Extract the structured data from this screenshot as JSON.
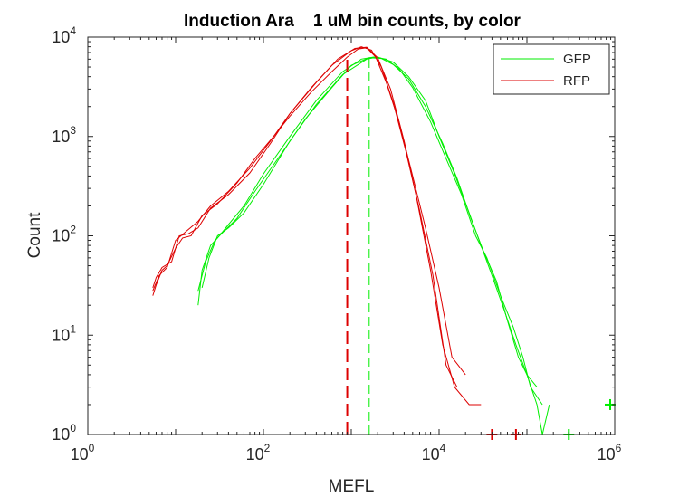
{
  "chart_data": {
    "type": "line",
    "title": "Induction Ara    1 uM bin counts, by color",
    "xlabel": "MEFL",
    "ylabel": "Count",
    "xscale": "log",
    "yscale": "log",
    "xlim": [
      1,
      1000000
    ],
    "ylim": [
      1,
      10000
    ],
    "x_ticks": [
      {
        "base": "10",
        "exp": "0"
      },
      {
        "base": "10",
        "exp": "2"
      },
      {
        "base": "10",
        "exp": "4"
      },
      {
        "base": "10",
        "exp": "6"
      }
    ],
    "y_ticks": [
      {
        "base": "10",
        "exp": "0"
      },
      {
        "base": "10",
        "exp": "1"
      },
      {
        "base": "10",
        "exp": "2"
      },
      {
        "base": "10",
        "exp": "3"
      },
      {
        "base": "10",
        "exp": "4"
      }
    ],
    "grid": false,
    "legend_position": "top-right",
    "colors": {
      "GFP": "#00ee00",
      "RFP": "#dd0000"
    },
    "series": [
      {
        "name": "GFP",
        "color": "#00ee00",
        "replicates": [
          {
            "x": [
              18,
              20,
              25,
              30,
              40,
              60,
              100,
              200,
              400,
              800,
              1300,
              1800,
              2500,
              3500,
              5000,
              8000,
              12000,
              18000,
              26000,
              35000,
              50000,
              70000,
              90000,
              110000,
              150000
            ],
            "y": [
              20,
              45,
              80,
              95,
              130,
              200,
              420,
              1000,
              2300,
              4500,
              6000,
              6300,
              6000,
              4800,
              3100,
              1400,
              600,
              260,
              100,
              60,
              25,
              12,
              6,
              3,
              2
            ]
          },
          {
            "x": [
              18,
              22,
              28,
              35,
              50,
              80,
              150,
              300,
              600,
              1000,
              1600,
              2200,
              3000,
              4500,
              7000,
              11000,
              16000,
              23000,
              32000,
              45000,
              60000,
              80000,
              100000,
              130000
            ],
            "y": [
              28,
              55,
              90,
              110,
              150,
              280,
              620,
              1500,
              3100,
              5200,
              6200,
              6100,
              5300,
              3800,
              2000,
              850,
              380,
              150,
              70,
              35,
              14,
              6,
              4,
              3
            ]
          },
          {
            "x": [
              20,
              24,
              30,
              40,
              60,
              100,
              200,
              400,
              800,
              1500,
              2000,
              3000,
              4500,
              7000,
              10000,
              15000,
              22000,
              30000,
              40000,
              55000,
              75000,
              100000,
              130000,
              150000,
              180000
            ],
            "y": [
              30,
              60,
              100,
              120,
              170,
              330,
              900,
              2100,
              4200,
              6000,
              6300,
              5600,
              4000,
              2300,
              1000,
              420,
              170,
              80,
              40,
              18,
              8,
              4,
              2,
              1,
              2
            ]
          }
        ],
        "median_line_x": 1600,
        "clipped_high_markers": [
          {
            "x": 300000,
            "y": 1
          },
          {
            "x": 1000000,
            "y": 2
          }
        ]
      },
      {
        "name": "RFP",
        "color": "#dd0000",
        "replicates": [
          {
            "x": [
              5.5,
              6,
              7,
              8,
              10,
              12,
              15,
              20,
              30,
              50,
              80,
              130,
              200,
              350,
              600,
              900,
              1200,
              1500,
              1900,
              2500,
              3500,
              5000,
              7000,
              10000,
              14000,
              20000
            ],
            "y": [
              25,
              32,
              45,
              50,
              75,
              95,
              100,
              160,
              210,
              340,
              600,
              1000,
              1600,
              2800,
              4500,
              6300,
              7600,
              7800,
              6300,
              3500,
              1400,
              400,
              120,
              30,
              6,
              4
            ]
          },
          {
            "x": [
              5.5,
              6.5,
              8,
              10,
              13,
              18,
              25,
              40,
              70,
              120,
              200,
              350,
              600,
              1000,
              1300,
              1700,
              2200,
              3000,
              4200,
              6000,
              8500,
              12000,
              16000
            ],
            "y": [
              28,
              40,
              48,
              90,
              110,
              140,
              200,
              280,
              480,
              900,
              1700,
              3100,
              5200,
              7300,
              8000,
              7400,
              5000,
              2200,
              700,
              180,
              40,
              5,
              3
            ]
          },
          {
            "x": [
              5.5,
              6,
              7,
              9,
              11,
              14,
              18,
              25,
              40,
              70,
              120,
              200,
              400,
              700,
              1100,
              1500,
              2000,
              2800,
              4000,
              5500,
              8000,
              11000,
              15000,
              22000,
              30000
            ],
            "y": [
              30,
              38,
              48,
              55,
              100,
              105,
              120,
              190,
              260,
              430,
              850,
              1700,
              3500,
              6000,
              7700,
              7900,
              6200,
              3000,
              900,
              250,
              45,
              8,
              3,
              2,
              2
            ]
          }
        ],
        "median_line_x": 900,
        "clipped_high_markers": [
          {
            "x": 40000,
            "y": 1
          },
          {
            "x": 75000,
            "y": 1
          }
        ]
      }
    ]
  }
}
